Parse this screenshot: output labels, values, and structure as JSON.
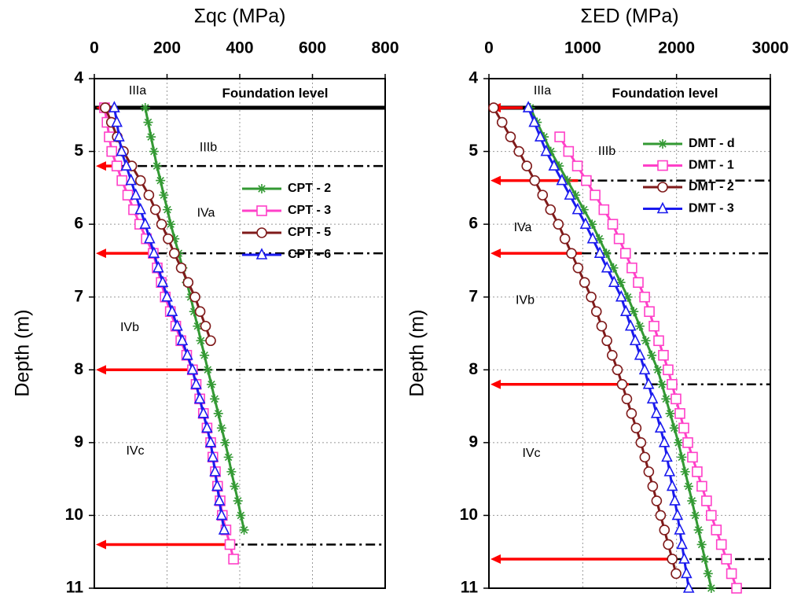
{
  "chart_data": [
    {
      "type": "line",
      "title": "Σqc (MPa)",
      "y_label": "Depth (m)",
      "xlim": [
        0,
        800
      ],
      "xticks": [
        0,
        200,
        400,
        600,
        800
      ],
      "ylim": [
        4,
        11
      ],
      "yticks": [
        4,
        5,
        6,
        7,
        8,
        9,
        10,
        11
      ],
      "y_reversed": true,
      "grid": true,
      "foundation_label": "Foundation level",
      "foundation_depth": 4.4,
      "zones": [
        "IIIa",
        "IIIb",
        "IVa",
        "IVb",
        "IVc"
      ],
      "arrow_color": "#ff0000",
      "arrows": [
        {
          "depth": 4.4,
          "x": 54
        },
        {
          "depth": 5.2,
          "x": 65
        },
        {
          "depth": 6.4,
          "x": 173
        },
        {
          "depth": 8.0,
          "x": 281
        },
        {
          "depth": 10.4,
          "x": 368
        }
      ],
      "series": [
        {
          "name": "CPT - 2",
          "color": "#339933",
          "marker": "asterisk",
          "depth": [
            4.4,
            4.6,
            4.8,
            5.0,
            5.2,
            5.4,
            5.6,
            5.8,
            6.0,
            6.2,
            6.4,
            6.6,
            6.8,
            7.0,
            7.2,
            7.4,
            7.6,
            7.8,
            8.0,
            8.2,
            8.4,
            8.6,
            8.8,
            9.0,
            9.2,
            9.4,
            9.6,
            9.8,
            10.0,
            10.2
          ],
          "values": [
            140,
            148,
            156,
            164,
            172,
            182,
            191,
            201,
            210,
            221,
            232,
            243,
            254,
            265,
            274,
            284,
            293,
            303,
            312,
            322,
            331,
            341,
            350,
            360,
            369,
            377,
            386,
            395,
            403,
            412
          ]
        },
        {
          "name": "CPT - 3",
          "color": "#ff40c8",
          "marker": "square",
          "depth": [
            4.4,
            4.6,
            4.8,
            5.0,
            5.2,
            5.4,
            5.6,
            5.8,
            6.0,
            6.2,
            6.4,
            6.6,
            6.8,
            7.0,
            7.2,
            7.4,
            7.6,
            7.8,
            8.0,
            8.2,
            8.4,
            8.6,
            8.8,
            9.0,
            9.2,
            9.4,
            9.6,
            9.8,
            10.0,
            10.2,
            10.4,
            10.6
          ],
          "values": [
            28,
            35,
            41,
            48,
            62,
            76,
            92,
            108,
            125,
            143,
            162,
            173,
            184,
            195,
            209,
            224,
            238,
            254,
            270,
            280,
            290,
            300,
            310,
            320,
            326,
            333,
            339,
            346,
            352,
            362,
            373,
            383
          ]
        },
        {
          "name": "CPT - 5",
          "color": "#7f1a1a",
          "marker": "circle",
          "depth": [
            4.4,
            4.6,
            4.8,
            5.0,
            5.2,
            5.4,
            5.6,
            5.8,
            6.0,
            6.2,
            6.4,
            6.6,
            6.8,
            7.0,
            7.2,
            7.4,
            7.6
          ],
          "values": [
            30,
            47,
            63,
            80,
            103,
            127,
            150,
            168,
            185,
            203,
            220,
            239,
            258,
            277,
            291,
            306,
            320
          ]
        },
        {
          "name": "CPT - 6",
          "color": "#1a1aee",
          "marker": "triangle",
          "depth": [
            4.4,
            4.6,
            4.8,
            5.0,
            5.2,
            5.4,
            5.6,
            5.8,
            6.0,
            6.2,
            6.4,
            6.6,
            6.8,
            7.0,
            7.2,
            7.4,
            7.6,
            7.8,
            8.0,
            8.2,
            8.4,
            8.6,
            8.8,
            9.0,
            9.2,
            9.4,
            9.6,
            9.8,
            10.0,
            10.2
          ],
          "values": [
            55,
            62,
            68,
            75,
            88,
            101,
            114,
            127,
            140,
            152,
            164,
            176,
            188,
            200,
            214,
            228,
            242,
            256,
            270,
            280,
            290,
            300,
            310,
            320,
            326,
            332,
            338,
            344,
            350,
            357
          ]
        }
      ]
    },
    {
      "type": "line",
      "title": "ΣED (MPa)",
      "y_label": "Depth (m)",
      "xlim": [
        0,
        3000
      ],
      "xticks": [
        0,
        1000,
        2000,
        3000
      ],
      "ylim": [
        4,
        11
      ],
      "yticks": [
        4,
        5,
        6,
        7,
        8,
        9,
        10,
        11
      ],
      "y_reversed": true,
      "grid": true,
      "foundation_label": "Foundation level",
      "foundation_depth": 4.4,
      "zones": [
        "IIIa",
        "IIIb",
        "IVa",
        "IVb",
        "IVc"
      ],
      "arrow_color": "#ff0000",
      "arrows": [
        {
          "depth": 4.4,
          "x": 360
        },
        {
          "depth": 5.4,
          "x": 950
        },
        {
          "depth": 6.4,
          "x": 990
        },
        {
          "depth": 8.2,
          "x": 1490
        },
        {
          "depth": 10.6,
          "x": 1995
        }
      ],
      "series": [
        {
          "name": "DMT - d",
          "color": "#339933",
          "marker": "asterisk",
          "depth": [
            4.4,
            4.6,
            4.8,
            5.0,
            5.2,
            5.4,
            5.6,
            5.8,
            6.0,
            6.2,
            6.4,
            6.6,
            6.8,
            7.0,
            7.2,
            7.4,
            7.6,
            7.8,
            8.0,
            8.2,
            8.4,
            8.6,
            8.8,
            9.0,
            9.2,
            9.4,
            9.6,
            9.8,
            10.0,
            10.2,
            10.4,
            10.6,
            10.8,
            11.0
          ],
          "values": [
            440,
            513,
            587,
            660,
            748,
            836,
            924,
            1012,
            1100,
            1176,
            1252,
            1328,
            1404,
            1480,
            1544,
            1608,
            1672,
            1736,
            1800,
            1844,
            1888,
            1932,
            1976,
            2020,
            2056,
            2092,
            2128,
            2164,
            2200,
            2234,
            2268,
            2302,
            2336,
            2370
          ]
        },
        {
          "name": "DMT - 1",
          "color": "#ff40c8",
          "marker": "square",
          "depth": [
            4.8,
            5.0,
            5.2,
            5.4,
            5.6,
            5.8,
            6.0,
            6.2,
            6.4,
            6.6,
            6.8,
            7.0,
            7.2,
            7.4,
            7.6,
            7.8,
            8.0,
            8.2,
            8.4,
            8.6,
            8.8,
            9.0,
            9.2,
            9.4,
            9.6,
            9.8,
            10.0,
            10.2,
            10.4,
            10.6,
            10.8,
            11.0
          ],
          "values": [
            755,
            849,
            943,
            1038,
            1132,
            1226,
            1320,
            1388,
            1456,
            1524,
            1592,
            1660,
            1710,
            1760,
            1810,
            1860,
            1910,
            1952,
            1994,
            2036,
            2078,
            2120,
            2170,
            2220,
            2270,
            2320,
            2370,
            2424,
            2478,
            2532,
            2586,
            2640
          ]
        },
        {
          "name": "DMT - 2",
          "color": "#7f1a1a",
          "marker": "circle",
          "depth": [
            4.4,
            4.6,
            4.8,
            5.0,
            5.2,
            5.4,
            5.6,
            5.8,
            6.0,
            6.2,
            6.4,
            6.6,
            6.8,
            7.0,
            7.2,
            7.4,
            7.6,
            7.8,
            8.0,
            8.2,
            8.4,
            8.6,
            8.8,
            9.0,
            9.2,
            9.4,
            9.6,
            9.8,
            10.0,
            10.2,
            10.4,
            10.6,
            10.8
          ],
          "values": [
            50,
            140,
            230,
            320,
            404,
            488,
            572,
            656,
            740,
            810,
            880,
            950,
            1020,
            1090,
            1146,
            1202,
            1258,
            1314,
            1370,
            1420,
            1470,
            1520,
            1570,
            1620,
            1662,
            1704,
            1746,
            1788,
            1830,
            1871,
            1912,
            1954,
            1995
          ]
        },
        {
          "name": "DMT - 3",
          "color": "#1a1aee",
          "marker": "triangle",
          "depth": [
            4.4,
            4.6,
            4.8,
            5.0,
            5.2,
            5.4,
            5.6,
            5.8,
            6.0,
            6.2,
            6.4,
            6.6,
            6.8,
            7.0,
            7.2,
            7.4,
            7.6,
            7.8,
            8.0,
            8.2,
            8.4,
            8.6,
            8.8,
            9.0,
            9.2,
            9.4,
            9.6,
            9.8,
            10.0,
            10.2,
            10.4,
            10.6,
            10.8,
            11.0
          ],
          "values": [
            420,
            483,
            547,
            610,
            694,
            778,
            862,
            946,
            1030,
            1106,
            1182,
            1258,
            1334,
            1410,
            1460,
            1510,
            1560,
            1610,
            1660,
            1702,
            1744,
            1786,
            1828,
            1870,
            1898,
            1926,
            1954,
            1982,
            2010,
            2034,
            2058,
            2082,
            2106,
            2130
          ]
        }
      ]
    }
  ]
}
